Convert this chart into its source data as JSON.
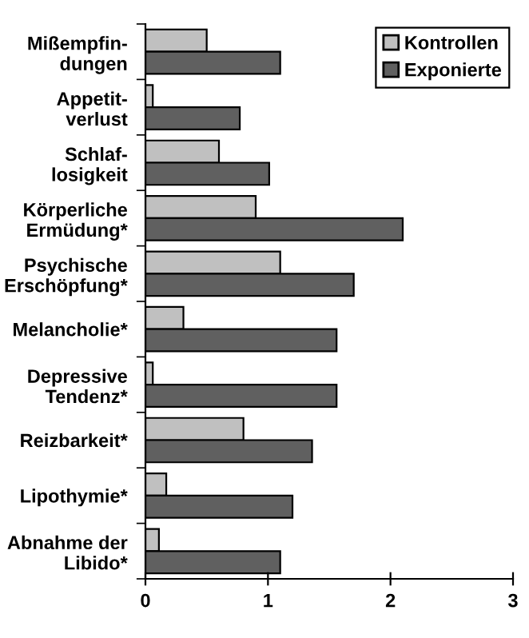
{
  "chart_data": {
    "type": "bar",
    "orientation": "horizontal",
    "categories": [
      "Mißempfin-\ndungen",
      "Appetit-\nverlust",
      "Schlaf-\nlosigkeit",
      "Körperliche\nErmüdung*",
      "Psychische\nErschöpfung*",
      "Melancholie*",
      "Depressive\nTendenz*",
      "Reizbarkeit*",
      "Lipothymie*",
      "Abnahme der\nLibido*"
    ],
    "series": [
      {
        "name": "Kontrollen",
        "color": "#c0c0c0",
        "values": [
          0.5,
          0.06,
          0.6,
          0.9,
          1.1,
          0.31,
          0.06,
          0.8,
          0.17,
          0.11
        ]
      },
      {
        "name": "Exponierte",
        "color": "#606060",
        "values": [
          1.1,
          0.77,
          1.01,
          2.1,
          1.7,
          1.56,
          1.56,
          1.36,
          1.2,
          1.1
        ]
      }
    ],
    "xlim": [
      0,
      3
    ],
    "xticks": [
      0,
      1,
      2,
      3
    ],
    "grid": false,
    "legend": "top right"
  }
}
